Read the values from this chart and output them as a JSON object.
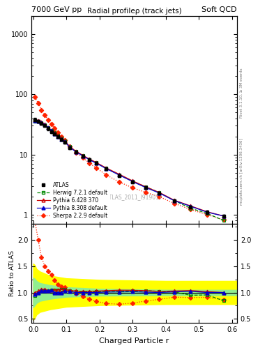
{
  "title_top_left": "7000 GeV pp",
  "title_top_right": "Soft QCD",
  "main_title": "Radial profileρ (track jets)",
  "xlabel": "Charged Particle r",
  "ylabel_ratio": "Ratio to ATLAS",
  "watermark": "ATLAS_2011_I919017",
  "right_label_top": "Rivet 3.1.10, ≥ 3M events",
  "right_label_bottom": "mcplots.cern.ch [arXiv:1306.3436]",
  "r_values": [
    0.005,
    0.015,
    0.025,
    0.035,
    0.045,
    0.055,
    0.065,
    0.075,
    0.085,
    0.095,
    0.11,
    0.13,
    0.15,
    0.17,
    0.19,
    0.22,
    0.26,
    0.3,
    0.34,
    0.38,
    0.425,
    0.475,
    0.525,
    0.575
  ],
  "atlas_y": [
    38,
    36,
    33,
    30,
    27,
    24,
    22,
    20,
    18,
    16,
    13,
    11,
    9.5,
    8.2,
    7.2,
    5.8,
    4.5,
    3.5,
    2.8,
    2.3,
    1.7,
    1.35,
    1.1,
    0.95
  ],
  "atlas_err_lo": [
    2.5,
    2.0,
    2.0,
    1.5,
    1.5,
    1.2,
    1.1,
    1.0,
    0.9,
    0.8,
    0.7,
    0.6,
    0.5,
    0.4,
    0.35,
    0.3,
    0.25,
    0.2,
    0.15,
    0.12,
    0.1,
    0.08,
    0.07,
    0.06
  ],
  "atlas_err_hi": [
    2.5,
    2.0,
    2.0,
    1.5,
    1.5,
    1.2,
    1.1,
    1.0,
    0.9,
    0.8,
    0.7,
    0.6,
    0.5,
    0.4,
    0.35,
    0.3,
    0.25,
    0.2,
    0.15,
    0.12,
    0.1,
    0.08,
    0.07,
    0.06
  ],
  "herwig_y": [
    36,
    36,
    34,
    31,
    28,
    25,
    23,
    21,
    19,
    17,
    13.5,
    11.2,
    9.6,
    8.3,
    7.3,
    5.9,
    4.6,
    3.6,
    2.9,
    2.35,
    1.72,
    1.28,
    1.05,
    0.8
  ],
  "pythia6_y": [
    38,
    37,
    35,
    32,
    28,
    25,
    23,
    21,
    19,
    17,
    13.5,
    11.3,
    9.7,
    8.4,
    7.4,
    6.0,
    4.7,
    3.65,
    2.9,
    2.35,
    1.75,
    1.4,
    1.12,
    0.95
  ],
  "pythia8_y": [
    37,
    36,
    34,
    31,
    28,
    25,
    22,
    20,
    18,
    16.5,
    13.2,
    11.0,
    9.5,
    8.2,
    7.2,
    5.85,
    4.55,
    3.55,
    2.82,
    2.3,
    1.72,
    1.38,
    1.1,
    0.95
  ],
  "sherpa_y": [
    90,
    72,
    55,
    45,
    38,
    32,
    27,
    23,
    20,
    17.5,
    13.5,
    10.8,
    8.8,
    7.2,
    6.0,
    4.6,
    3.5,
    2.8,
    2.35,
    2.0,
    1.55,
    1.22,
    1.0,
    0.82
  ],
  "atlas_color": "#000000",
  "herwig_color": "#008800",
  "pythia6_color": "#cc0000",
  "pythia8_color": "#0000cc",
  "sherpa_color": "#ff2200",
  "ylim_main": [
    0.7,
    2000
  ],
  "ylim_ratio": [
    0.42,
    2.3
  ],
  "xlim": [
    -0.005,
    0.615
  ],
  "band_yellow_lo": [
    0.0,
    0.005,
    0.01,
    0.02,
    0.05,
    0.1,
    0.2,
    0.4,
    0.62
  ],
  "band_yellow_lo_vals": [
    0.48,
    0.52,
    0.58,
    0.63,
    0.68,
    0.73,
    0.76,
    0.78,
    0.78
  ],
  "band_yellow_hi_vals": [
    1.55,
    1.52,
    1.45,
    1.4,
    1.32,
    1.27,
    1.24,
    1.22,
    1.22
  ],
  "band_green_lo_vals": [
    0.72,
    0.76,
    0.8,
    0.84,
    0.88,
    0.92,
    0.94,
    0.95,
    0.95
  ],
  "band_green_hi_vals": [
    1.28,
    1.26,
    1.22,
    1.18,
    1.14,
    1.1,
    1.07,
    1.05,
    1.05
  ]
}
